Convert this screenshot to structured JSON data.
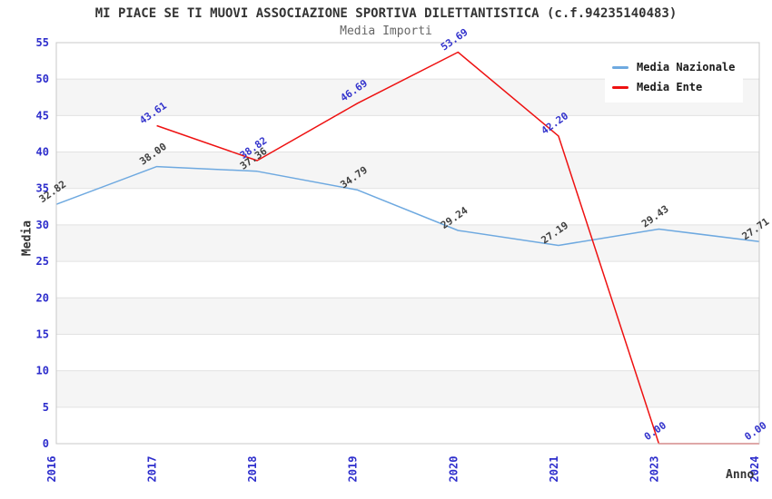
{
  "title": "MI PIACE SE TI MUOVI ASSOCIAZIONE SPORTIVA DILETTANTISTICA (c.f.94235140483)",
  "subtitle": "Media Importi",
  "legend": {
    "items": [
      {
        "label": "Media Nazionale",
        "color": "#6ea9e0"
      },
      {
        "label": "Media Ente",
        "color": "#ee1111"
      }
    ]
  },
  "colors": {
    "tick_label": "#2d2dcc",
    "band_gray": "#f5f5f5",
    "band_white": "#ffffff",
    "gridline": "#e2e2e2",
    "plot_border": "#c8c8c8",
    "title_text": "#333333",
    "subtitle_text": "#666666"
  },
  "chart_data": {
    "type": "line",
    "title": "MI PIACE SE TI MUOVI ASSOCIAZIONE SPORTIVA DILETTANTISTICA (c.f.94235140483)",
    "subtitle": "Media Importi",
    "xlabel": "Anno",
    "ylabel": "Media",
    "categories": [
      "2016",
      "2017",
      "2018",
      "2019",
      "2020",
      "2021",
      "2023",
      "2024"
    ],
    "series": [
      {
        "name": "Media Nazionale",
        "color": "#6ea9e0",
        "label_color": "#404040",
        "values": [
          32.82,
          38.0,
          37.36,
          34.79,
          29.24,
          27.19,
          29.43,
          27.71
        ]
      },
      {
        "name": "Media Ente",
        "color": "#ee1111",
        "label_color": "#3333cc",
        "values": [
          null,
          43.61,
          38.82,
          46.69,
          53.69,
          42.2,
          0.0,
          0.0
        ]
      }
    ],
    "ylim": [
      0,
      55
    ],
    "ytick_step": 5,
    "yticks": [
      0,
      5,
      10,
      15,
      20,
      25,
      30,
      35,
      40,
      45,
      50,
      55
    ],
    "grid": "horizontal-bands-alternating",
    "legend_position": "top-right",
    "data_labels": "rotated, two decimals"
  }
}
